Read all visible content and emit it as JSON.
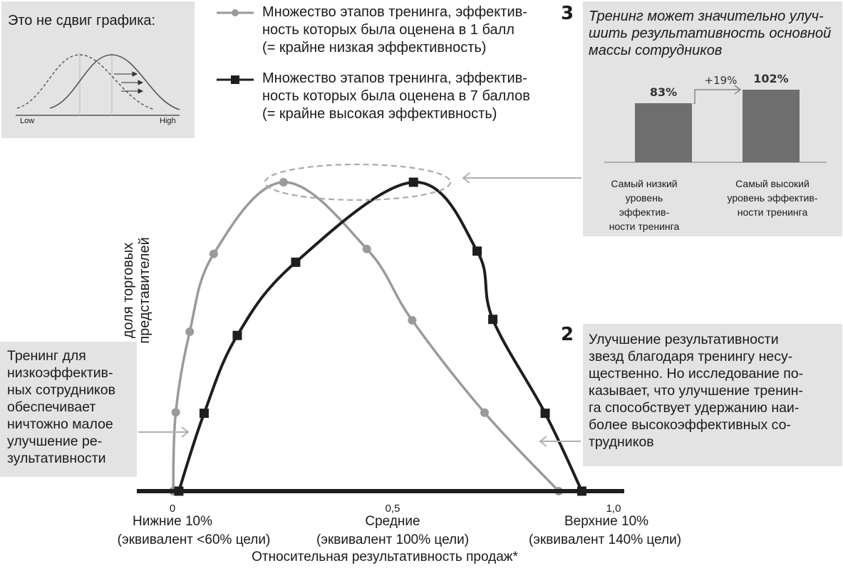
{
  "inset_shift": {
    "title": "Это не сдвиг графика:",
    "low_label": "Low",
    "high_label": "High"
  },
  "legend": [
    {
      "text": "Множество этапов тренинга, эффектив-\nность которых была оценена в 1 балл\n(= крайне низкая эффективность)",
      "color": "#9a9a9a",
      "marker": "circle"
    },
    {
      "text": "Множество этапов тренинга, эффектив-\nность которых была оценена в 7 баллов\n(= крайне высокая эффективность)",
      "color": "#1e1e1e",
      "marker": "square"
    }
  ],
  "callout3": {
    "number": "3",
    "title": "Тренинг может значительно улуч-\nшить результативность основной\nмассы сотрудников",
    "bars": [
      {
        "label": "Самый низкий\nуровень эффектив-\nности тренинга",
        "value": 83,
        "value_label": "83%"
      },
      {
        "label": "Самый высокий\nуровень эффектив-\nности тренинга",
        "value": 102,
        "value_label": "102%"
      }
    ],
    "delta_label": "+19%",
    "bar_color": "#6e6e6e"
  },
  "callout2": {
    "number": "2",
    "text": "Улучшение результативности\nзвезд благодаря тренингу несу-\nщественно. Но исследование по-\nказывает, что улучшение тренин-\nга способствует удержанию наи-\nболее высокоэффективных со-\nтрудников"
  },
  "callout1": {
    "text": "Тренинг для\nнизкоэффектив-\nных сотрудников\nобеспечивает\nничтожно малое\nулучшение ре-\nзультативности"
  },
  "axes": {
    "ylabel": "доля торговых\nпредставителей",
    "xlabel": "Относительная результативность продаж*",
    "ticks": [
      {
        "value": "0",
        "name": "Нижние 10%",
        "sub": "(эквивалент <60% цели)"
      },
      {
        "value": "0,5",
        "name": "Средние",
        "sub": "(эквивалент 100% цели)"
      },
      {
        "value": "1,0",
        "name": "Верхние 10%",
        "sub": "(эквивалент 140% цели)"
      }
    ]
  },
  "chart_data": {
    "type": "line",
    "xlabel": "Относительная результативность продаж*",
    "ylabel": "доля торговых\nпредставителей",
    "xlim": [
      0,
      1.0
    ],
    "ylim": [
      0,
      1.0
    ],
    "series": [
      {
        "name": "Множество этапов тренинга, эффективность которых была оценена в 1 балл (= крайне низкая эффективность)",
        "color": "#9a9a9a",
        "marker": "circle",
        "x": [
          0.0,
          0.006,
          0.038,
          0.093,
          0.253,
          0.444,
          0.548,
          0.714,
          0.884
        ],
        "y": [
          0.0,
          0.255,
          0.516,
          0.768,
          1.0,
          0.784,
          0.553,
          0.254,
          0.0
        ]
      },
      {
        "name": "Множество этапов тренинга, эффективность которых была оценена в 7 баллов (= крайне высокая эффективность)",
        "color": "#1e1e1e",
        "marker": "square",
        "x": [
          0.013,
          0.071,
          0.147,
          0.281,
          0.551,
          0.697,
          0.733,
          0.853,
          0.937
        ],
        "y": [
          0.0,
          0.252,
          0.504,
          0.741,
          1.0,
          0.777,
          0.556,
          0.252,
          0.0
        ]
      }
    ]
  }
}
